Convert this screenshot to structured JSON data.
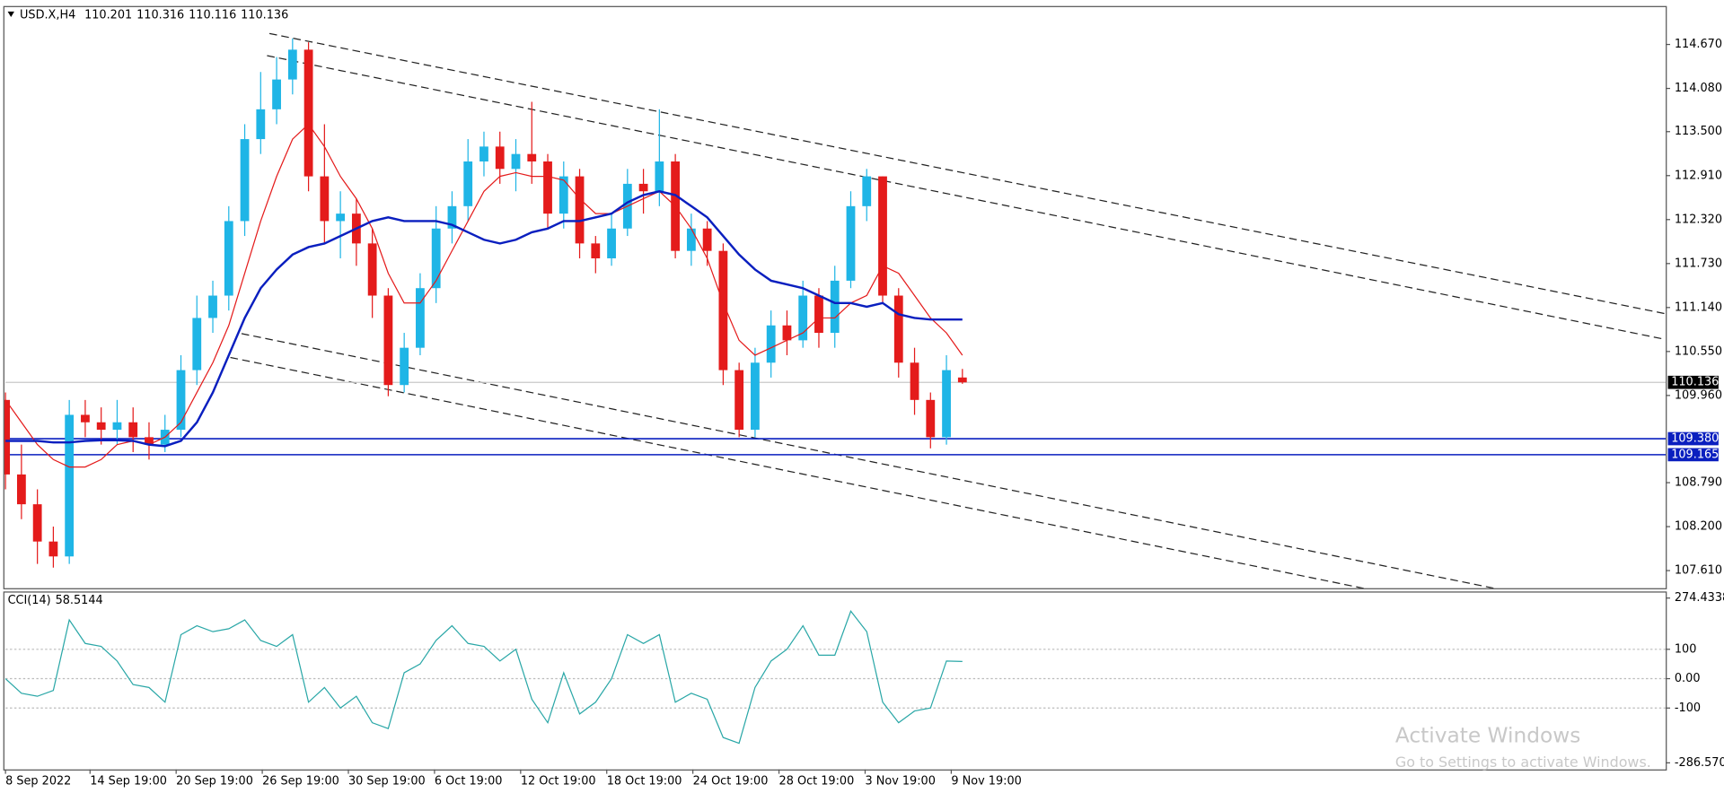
{
  "chart_data": {
    "type": "candlestick",
    "symbol": "USD.X,H4",
    "indicator": "CCI(14)",
    "watermark_title": "Activate Windows",
    "watermark_text": "Go to Settings to activate Windows.",
    "bull_color": "#1fb5e6",
    "bear_color": "#e41b1b",
    "xlim": [
      0,
      104.1
    ],
    "xticks": [
      {
        "value": 0,
        "label": "8 Sep 2022"
      },
      {
        "value": 5.3,
        "label": "14 Sep 19:00"
      },
      {
        "value": 10.7,
        "label": "20 Sep 19:00"
      },
      {
        "value": 16.1,
        "label": "26 Sep 19:00"
      },
      {
        "value": 21.5,
        "label": "30 Sep 19:00"
      },
      {
        "value": 26.9,
        "label": "6 Oct 19:00"
      },
      {
        "value": 32.3,
        "label": "12 Oct 19:00"
      },
      {
        "value": 37.7,
        "label": "18 Oct 19:00"
      },
      {
        "value": 43.1,
        "label": "24 Oct 19:00"
      },
      {
        "value": 48.5,
        "label": "28 Oct 19:00"
      },
      {
        "value": 53.9,
        "label": "3 Nov 19:00"
      },
      {
        "value": 59.3,
        "label": "9 Nov 19:00"
      }
    ],
    "ylim": [
      107.374,
      115.186
    ],
    "yticks": [
      {
        "value": 114.67,
        "label": "114.670"
      },
      {
        "value": 114.08,
        "label": "114.080"
      },
      {
        "value": 113.5,
        "label": "113.500"
      },
      {
        "value": 112.91,
        "label": "112.910"
      },
      {
        "value": 112.32,
        "label": "112.320"
      },
      {
        "value": 111.73,
        "label": "111.730"
      },
      {
        "value": 111.14,
        "label": "111.140"
      },
      {
        "value": 110.55,
        "label": "110.550"
      },
      {
        "value": 109.96,
        "label": "109.960"
      },
      {
        "value": 108.79,
        "label": "108.790"
      },
      {
        "value": 108.2,
        "label": "108.200"
      },
      {
        "value": 107.61,
        "label": "107.610"
      }
    ],
    "open": [
      109.9,
      108.9,
      108.5,
      108.0,
      107.8,
      109.7,
      109.6,
      109.5,
      109.6,
      109.4,
      109.3,
      109.5,
      110.3,
      111.0,
      111.3,
      112.3,
      113.4,
      113.8,
      114.2,
      114.6,
      112.9,
      112.3,
      112.4,
      112.0,
      111.3,
      110.1,
      110.6,
      111.4,
      112.2,
      112.5,
      113.1,
      113.3,
      113.0,
      113.2,
      113.1,
      112.4,
      112.9,
      112.0,
      111.8,
      112.2,
      112.8,
      112.7,
      113.1,
      111.9,
      112.2,
      111.9,
      110.3,
      109.5,
      110.4,
      110.9,
      110.7,
      111.3,
      110.8,
      111.5,
      112.5,
      112.9,
      111.3,
      110.4,
      109.9,
      109.4,
      110.201
    ],
    "high": [
      110.0,
      109.3,
      108.7,
      108.2,
      109.9,
      109.9,
      109.8,
      109.9,
      109.8,
      109.6,
      109.7,
      110.5,
      111.3,
      111.5,
      112.5,
      113.6,
      114.3,
      114.5,
      114.75,
      114.7,
      113.6,
      112.7,
      112.6,
      112.2,
      111.4,
      110.8,
      111.6,
      112.5,
      112.7,
      113.4,
      113.5,
      113.5,
      113.4,
      113.9,
      113.2,
      113.1,
      113.0,
      112.1,
      112.4,
      113.0,
      113.0,
      113.8,
      113.2,
      112.4,
      112.3,
      112.0,
      110.4,
      110.6,
      111.1,
      111.1,
      111.5,
      111.4,
      111.7,
      112.7,
      113.0,
      112.9,
      111.4,
      110.6,
      110.0,
      110.5,
      110.316
    ],
    "low": [
      108.7,
      108.3,
      107.7,
      107.65,
      107.7,
      109.4,
      109.3,
      109.3,
      109.2,
      109.1,
      109.2,
      109.4,
      110.1,
      110.8,
      111.1,
      112.1,
      113.2,
      113.6,
      114.0,
      112.7,
      112.0,
      111.8,
      111.7,
      111.0,
      109.95,
      110.0,
      110.5,
      111.2,
      112.0,
      112.3,
      112.9,
      112.8,
      112.7,
      112.8,
      112.2,
      112.2,
      111.8,
      111.6,
      111.7,
      112.1,
      112.4,
      112.5,
      111.8,
      111.7,
      111.7,
      110.1,
      109.4,
      109.4,
      110.2,
      110.5,
      110.6,
      110.6,
      110.6,
      111.4,
      112.3,
      111.2,
      110.2,
      109.7,
      109.25,
      109.3,
      110.116
    ],
    "close": [
      108.9,
      108.5,
      108.0,
      107.8,
      109.7,
      109.6,
      109.5,
      109.6,
      109.4,
      109.3,
      109.5,
      110.3,
      111.0,
      111.3,
      112.3,
      113.4,
      113.8,
      114.2,
      114.6,
      112.9,
      112.3,
      112.4,
      112.0,
      111.3,
      110.1,
      110.6,
      111.4,
      112.2,
      112.5,
      113.1,
      113.3,
      113.0,
      113.2,
      113.1,
      112.4,
      112.9,
      112.0,
      111.8,
      112.2,
      112.8,
      112.7,
      113.1,
      111.9,
      112.2,
      111.9,
      110.3,
      109.5,
      110.4,
      110.9,
      110.7,
      111.3,
      110.8,
      111.5,
      112.5,
      112.9,
      111.3,
      110.4,
      109.9,
      109.4,
      110.3,
      110.136
    ],
    "series": [
      {
        "color": "#e41b1b",
        "values": [
          109.9,
          109.6,
          109.3,
          109.1,
          109.0,
          109.0,
          109.1,
          109.3,
          109.35,
          109.3,
          109.4,
          109.6,
          110.0,
          110.4,
          110.9,
          111.6,
          112.3,
          112.9,
          113.4,
          113.6,
          113.3,
          112.9,
          112.6,
          112.2,
          111.6,
          111.2,
          111.2,
          111.5,
          111.9,
          112.3,
          112.7,
          112.9,
          112.95,
          112.9,
          112.9,
          112.85,
          112.6,
          112.4,
          112.4,
          112.5,
          112.6,
          112.7,
          112.5,
          112.2,
          111.8,
          111.2,
          110.7,
          110.5,
          110.6,
          110.7,
          110.8,
          111.0,
          111.0,
          111.2,
          111.3,
          111.7,
          111.6,
          111.3,
          111.0,
          110.8,
          110.5
        ]
      },
      {
        "color": "#0a1fbf",
        "values": [
          109.35,
          109.35,
          109.35,
          109.33,
          109.33,
          109.35,
          109.36,
          109.36,
          109.35,
          109.3,
          109.28,
          109.35,
          109.6,
          110.0,
          110.5,
          111.0,
          111.4,
          111.65,
          111.85,
          111.95,
          112.0,
          112.1,
          112.2,
          112.3,
          112.35,
          112.3,
          112.3,
          112.3,
          112.25,
          112.15,
          112.05,
          112.0,
          112.05,
          112.15,
          112.2,
          112.3,
          112.3,
          112.35,
          112.4,
          112.55,
          112.65,
          112.7,
          112.65,
          112.5,
          112.35,
          112.1,
          111.85,
          111.65,
          111.5,
          111.45,
          111.4,
          111.3,
          111.2,
          111.2,
          111.15,
          111.2,
          111.05,
          111.0,
          110.98,
          110.98,
          110.98
        ]
      }
    ],
    "levels": [
      {
        "value": 109.38,
        "label": "109.380"
      },
      {
        "value": 109.165,
        "label": "109.165"
      }
    ],
    "level_color": "#0a1fbf",
    "trendlines": [
      {
        "x": [
          16.55,
          104.1
        ],
        "y": [
          114.817,
          111.056
        ]
      },
      {
        "x": [
          16.4,
          103.9
        ],
        "y": [
          114.52,
          110.72
        ]
      },
      {
        "x": [
          14.8,
          93.4
        ],
        "y": [
          110.79,
          107.37
        ]
      },
      {
        "x": [
          14.1,
          85.2
        ],
        "y": [
          110.47,
          107.37
        ]
      }
    ],
    "cci": [
      0,
      -50,
      -60,
      -40,
      200,
      120,
      110,
      60,
      -20,
      -30,
      -80,
      150,
      180,
      160,
      170,
      200,
      130,
      110,
      150,
      -80,
      -30,
      -100,
      -60,
      -150,
      -170,
      20,
      50,
      130,
      180,
      120,
      110,
      60,
      100,
      -70,
      -150,
      20,
      -120,
      -80,
      0,
      150,
      120,
      150,
      -80,
      -50,
      -70,
      -200,
      -220,
      -30,
      60,
      100,
      180,
      80,
      80,
      230,
      160,
      -80,
      -150,
      -110,
      -100,
      60,
      58.5144
    ],
    "cci_color": "#2aa7a7",
    "y2lim": [
      -286.5703,
      274.4338
    ],
    "y2ticks": [
      274.4338,
      100,
      {
        "value": 0,
        "label": "0.00"
      },
      -100,
      -286.5703
    ]
  }
}
